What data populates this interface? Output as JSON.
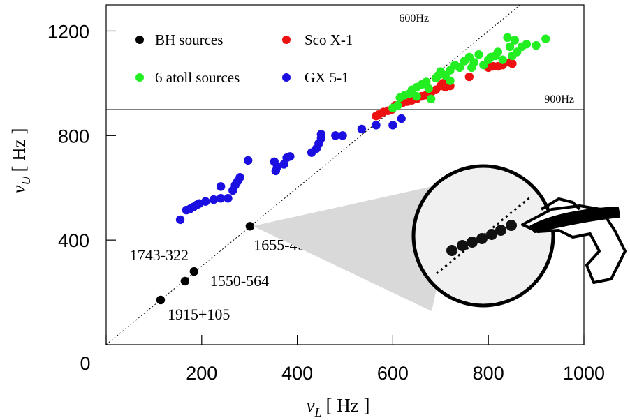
{
  "chart_data": {
    "type": "scatter",
    "xlabel": {
      "symbol": "ν",
      "subscript": "L",
      "unit": "[ Hz ]"
    },
    "ylabel": {
      "symbol": "ν",
      "subscript": "U",
      "unit": "[ Hz ]"
    },
    "xlim": [
      0,
      1000
    ],
    "ylim": [
      0,
      1300
    ],
    "xticks": [
      0,
      200,
      400,
      600,
      800,
      1000
    ],
    "yticks": [
      400,
      800,
      1200
    ],
    "reference_line_slope": 1.5,
    "vlines": [
      {
        "value": 600,
        "label": "600Hz"
      }
    ],
    "hlines": [
      {
        "value": 900,
        "label": "900Hz"
      }
    ],
    "legend": "upper left",
    "series": [
      {
        "name": "BH sources",
        "color": "#000000",
        "x": [
          114,
          165,
          184,
          301
        ],
        "values": [
          171,
          243,
          280,
          453
        ],
        "point_labels": [
          "1915+105",
          "1550-564",
          "1743-322",
          "1655-40"
        ]
      },
      {
        "name": "Sco X-1",
        "color": "#ee1111",
        "x": [
          565,
          570,
          580,
          590,
          598,
          605,
          620,
          630,
          640,
          650,
          660,
          670,
          680,
          690,
          700,
          705,
          710,
          720,
          760,
          800,
          810,
          820,
          830,
          845,
          850
        ],
        "values": [
          875,
          880,
          890,
          895,
          900,
          915,
          925,
          930,
          935,
          940,
          950,
          955,
          965,
          975,
          990,
          1000,
          985,
          990,
          1025,
          1060,
          1065,
          1065,
          1070,
          1080,
          1075
        ]
      },
      {
        "name": "6 atoll sources",
        "color": "#22ee22",
        "x": [
          600,
          610,
          615,
          625,
          635,
          640,
          650,
          650,
          660,
          670,
          675,
          680,
          690,
          695,
          700,
          710,
          720,
          720,
          730,
          740,
          750,
          760,
          765,
          770,
          780,
          790,
          800,
          805,
          815,
          820,
          830,
          840,
          845,
          850,
          855,
          860,
          870,
          880,
          900,
          920
        ],
        "values": [
          905,
          915,
          945,
          955,
          960,
          975,
          985,
          950,
          995,
          1005,
          980,
          940,
          1020,
          1030,
          1045,
          1030,
          1050,
          1010,
          1070,
          1060,
          1085,
          1100,
          1060,
          1080,
          1110,
          1070,
          1090,
          1100,
          1105,
          1120,
          1090,
          1175,
          1140,
          1105,
          1165,
          1120,
          1140,
          1150,
          1145,
          1170
        ]
      },
      {
        "name": "GX 5-1",
        "color": "#1a0ee0",
        "x": [
          155,
          168,
          176,
          183,
          190,
          195,
          208,
          225,
          240,
          240,
          255,
          265,
          270,
          275,
          280,
          297,
          352,
          355,
          358,
          372,
          378,
          385,
          430,
          440,
          445,
          450,
          450,
          480,
          495,
          535,
          565,
          600,
          618
        ],
        "values": [
          478,
          515,
          520,
          527,
          535,
          540,
          548,
          555,
          560,
          605,
          560,
          590,
          610,
          625,
          640,
          705,
          700,
          665,
          680,
          690,
          715,
          720,
          735,
          750,
          770,
          790,
          805,
          800,
          800,
          825,
          840,
          840,
          865
        ]
      }
    ]
  }
}
